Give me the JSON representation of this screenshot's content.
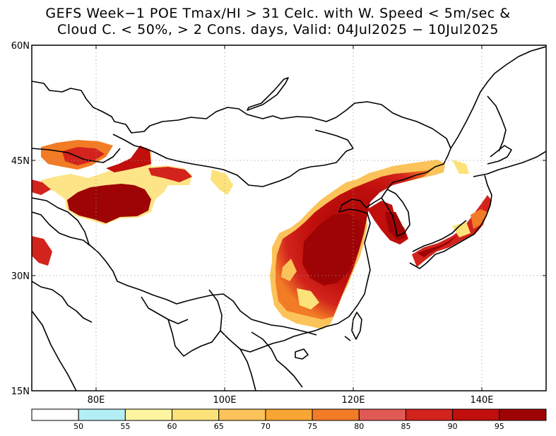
{
  "title": {
    "line1": "GEFS Week−1 POE Tmax/HI > 31 Celc. with W. Speed < 5m/sec &",
    "line2": "Cloud C. < 50%, > 2 Cons. days, Valid: 04Jul2025 − 10Jul2025"
  },
  "map": {
    "lon_range": [
      70,
      150
    ],
    "lat_range": [
      15,
      60
    ],
    "gridlines": "dotted",
    "lon_ticks": [
      {
        "lon": 80,
        "label": "80E"
      },
      {
        "lon": 100,
        "label": "100E"
      },
      {
        "lon": 120,
        "label": "120E"
      },
      {
        "lon": 140,
        "label": "140E"
      }
    ],
    "lat_ticks": [
      {
        "lat": 60,
        "label": "60N"
      },
      {
        "lat": 45,
        "label": "45N"
      },
      {
        "lat": 30,
        "label": "30N"
      },
      {
        "lat": 15,
        "label": "15N"
      }
    ]
  },
  "colorbar": {
    "bins": [
      {
        "color": "#ffffff"
      },
      {
        "color": "#b4eef5"
      },
      {
        "color": "#fff5a0"
      },
      {
        "color": "#fde27a"
      },
      {
        "color": "#fbc35a"
      },
      {
        "color": "#f8a533"
      },
      {
        "color": "#f27b26"
      },
      {
        "color": "#e05a55"
      },
      {
        "color": "#d2231c"
      },
      {
        "color": "#c00f0c"
      },
      {
        "color": "#9e0405"
      }
    ],
    "labels": [
      "50",
      "55",
      "60",
      "65",
      "70",
      "75",
      "80",
      "85",
      "90",
      "95"
    ]
  }
}
